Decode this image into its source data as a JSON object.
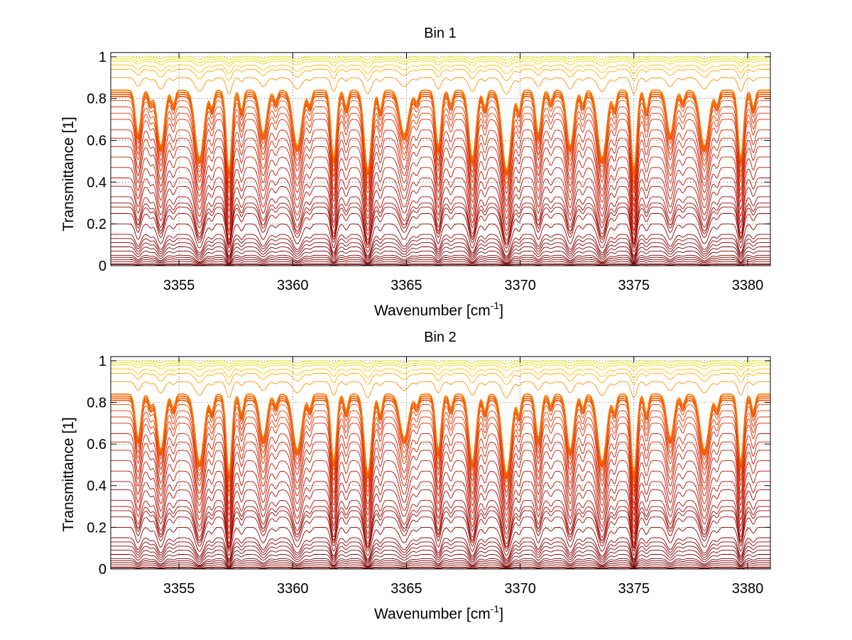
{
  "chart_data": [
    {
      "type": "line",
      "title": "Bin 1",
      "xlabel_main": "Wavenumber [cm",
      "xlabel_sup": "-1",
      "xlabel_end": "]",
      "ylabel": "Transmittance [1]",
      "xlim": [
        3352,
        3381
      ],
      "ylim": [
        0,
        1.02
      ],
      "xticks": [
        3355,
        3360,
        3365,
        3370,
        3375,
        3380
      ],
      "xtick_labels": [
        "3355",
        "3360",
        "3365",
        "3370",
        "3375",
        "3380"
      ],
      "yticks": [
        0,
        0.2,
        0.4,
        0.6,
        0.8,
        1
      ],
      "ytick_labels": [
        "0",
        "0.2",
        "0.4",
        "0.6",
        "0.8",
        "1"
      ],
      "grid": "dotted",
      "legend": "none",
      "absorption_lines": [
        3353.2,
        3354.2,
        3355.9,
        3357.2,
        3358.7,
        3360.2,
        3361.8,
        3363.3,
        3364.9,
        3366.4,
        3367.9,
        3369.4,
        3370.8,
        3372.2,
        3373.6,
        3375.0,
        3376.6,
        3378.1,
        3379.7
      ],
      "continuum_levels": [
        0.0,
        0.005,
        0.01,
        0.02,
        0.03,
        0.04,
        0.05,
        0.07,
        0.09,
        0.11,
        0.13,
        0.15,
        0.2,
        0.25,
        0.28,
        0.3,
        0.33,
        0.38,
        0.42,
        0.47,
        0.52,
        0.57,
        0.61,
        0.65,
        0.7,
        0.73,
        0.76,
        0.79,
        0.81,
        0.82,
        0.83,
        0.84,
        0.9,
        0.94,
        0.96,
        0.98,
        0.99,
        1.0
      ],
      "series_colors": [
        "#7a0000",
        "#8b0000",
        "#9a0500",
        "#a80a00",
        "#b51000",
        "#c21800",
        "#cc2000",
        "#d62a00",
        "#e03400",
        "#e84000",
        "#f05000",
        "#f56000",
        "#f87800",
        "#fa9000",
        "#fcaa00",
        "#fdc000",
        "#f0d000",
        "#d8e000"
      ]
    },
    {
      "type": "line",
      "title": "Bin 2",
      "xlabel_main": "Wavenumber [cm",
      "xlabel_sup": "-1",
      "xlabel_end": "]",
      "ylabel": "Transmittance [1]",
      "xlim": [
        3352,
        3381
      ],
      "ylim": [
        0,
        1.02
      ],
      "xticks": [
        3355,
        3360,
        3365,
        3370,
        3375,
        3380
      ],
      "xtick_labels": [
        "3355",
        "3360",
        "3365",
        "3370",
        "3375",
        "3380"
      ],
      "yticks": [
        0,
        0.2,
        0.4,
        0.6,
        0.8,
        1
      ],
      "ytick_labels": [
        "0",
        "0.2",
        "0.4",
        "0.6",
        "0.8",
        "1"
      ],
      "grid": "dotted",
      "legend": "none",
      "absorption_lines": [
        3353.2,
        3354.2,
        3355.9,
        3357.2,
        3358.7,
        3360.2,
        3361.8,
        3363.3,
        3364.9,
        3366.4,
        3367.9,
        3369.4,
        3370.8,
        3372.2,
        3373.6,
        3375.0,
        3376.6,
        3378.1,
        3379.7
      ],
      "continuum_levels": [
        0.0,
        0.005,
        0.01,
        0.02,
        0.03,
        0.04,
        0.05,
        0.07,
        0.09,
        0.11,
        0.13,
        0.15,
        0.2,
        0.25,
        0.28,
        0.3,
        0.33,
        0.38,
        0.42,
        0.47,
        0.52,
        0.57,
        0.61,
        0.65,
        0.7,
        0.73,
        0.76,
        0.79,
        0.81,
        0.82,
        0.83,
        0.84,
        0.9,
        0.94,
        0.96,
        0.98,
        0.99,
        1.0
      ],
      "series_colors": [
        "#7a0000",
        "#8b0000",
        "#9a0500",
        "#a80a00",
        "#b51000",
        "#c21800",
        "#cc2000",
        "#d62a00",
        "#e03400",
        "#e84000",
        "#f05000",
        "#f56000",
        "#f87800",
        "#fa9000",
        "#fcaa00",
        "#fdc000",
        "#f0d000",
        "#d8e000"
      ]
    }
  ]
}
